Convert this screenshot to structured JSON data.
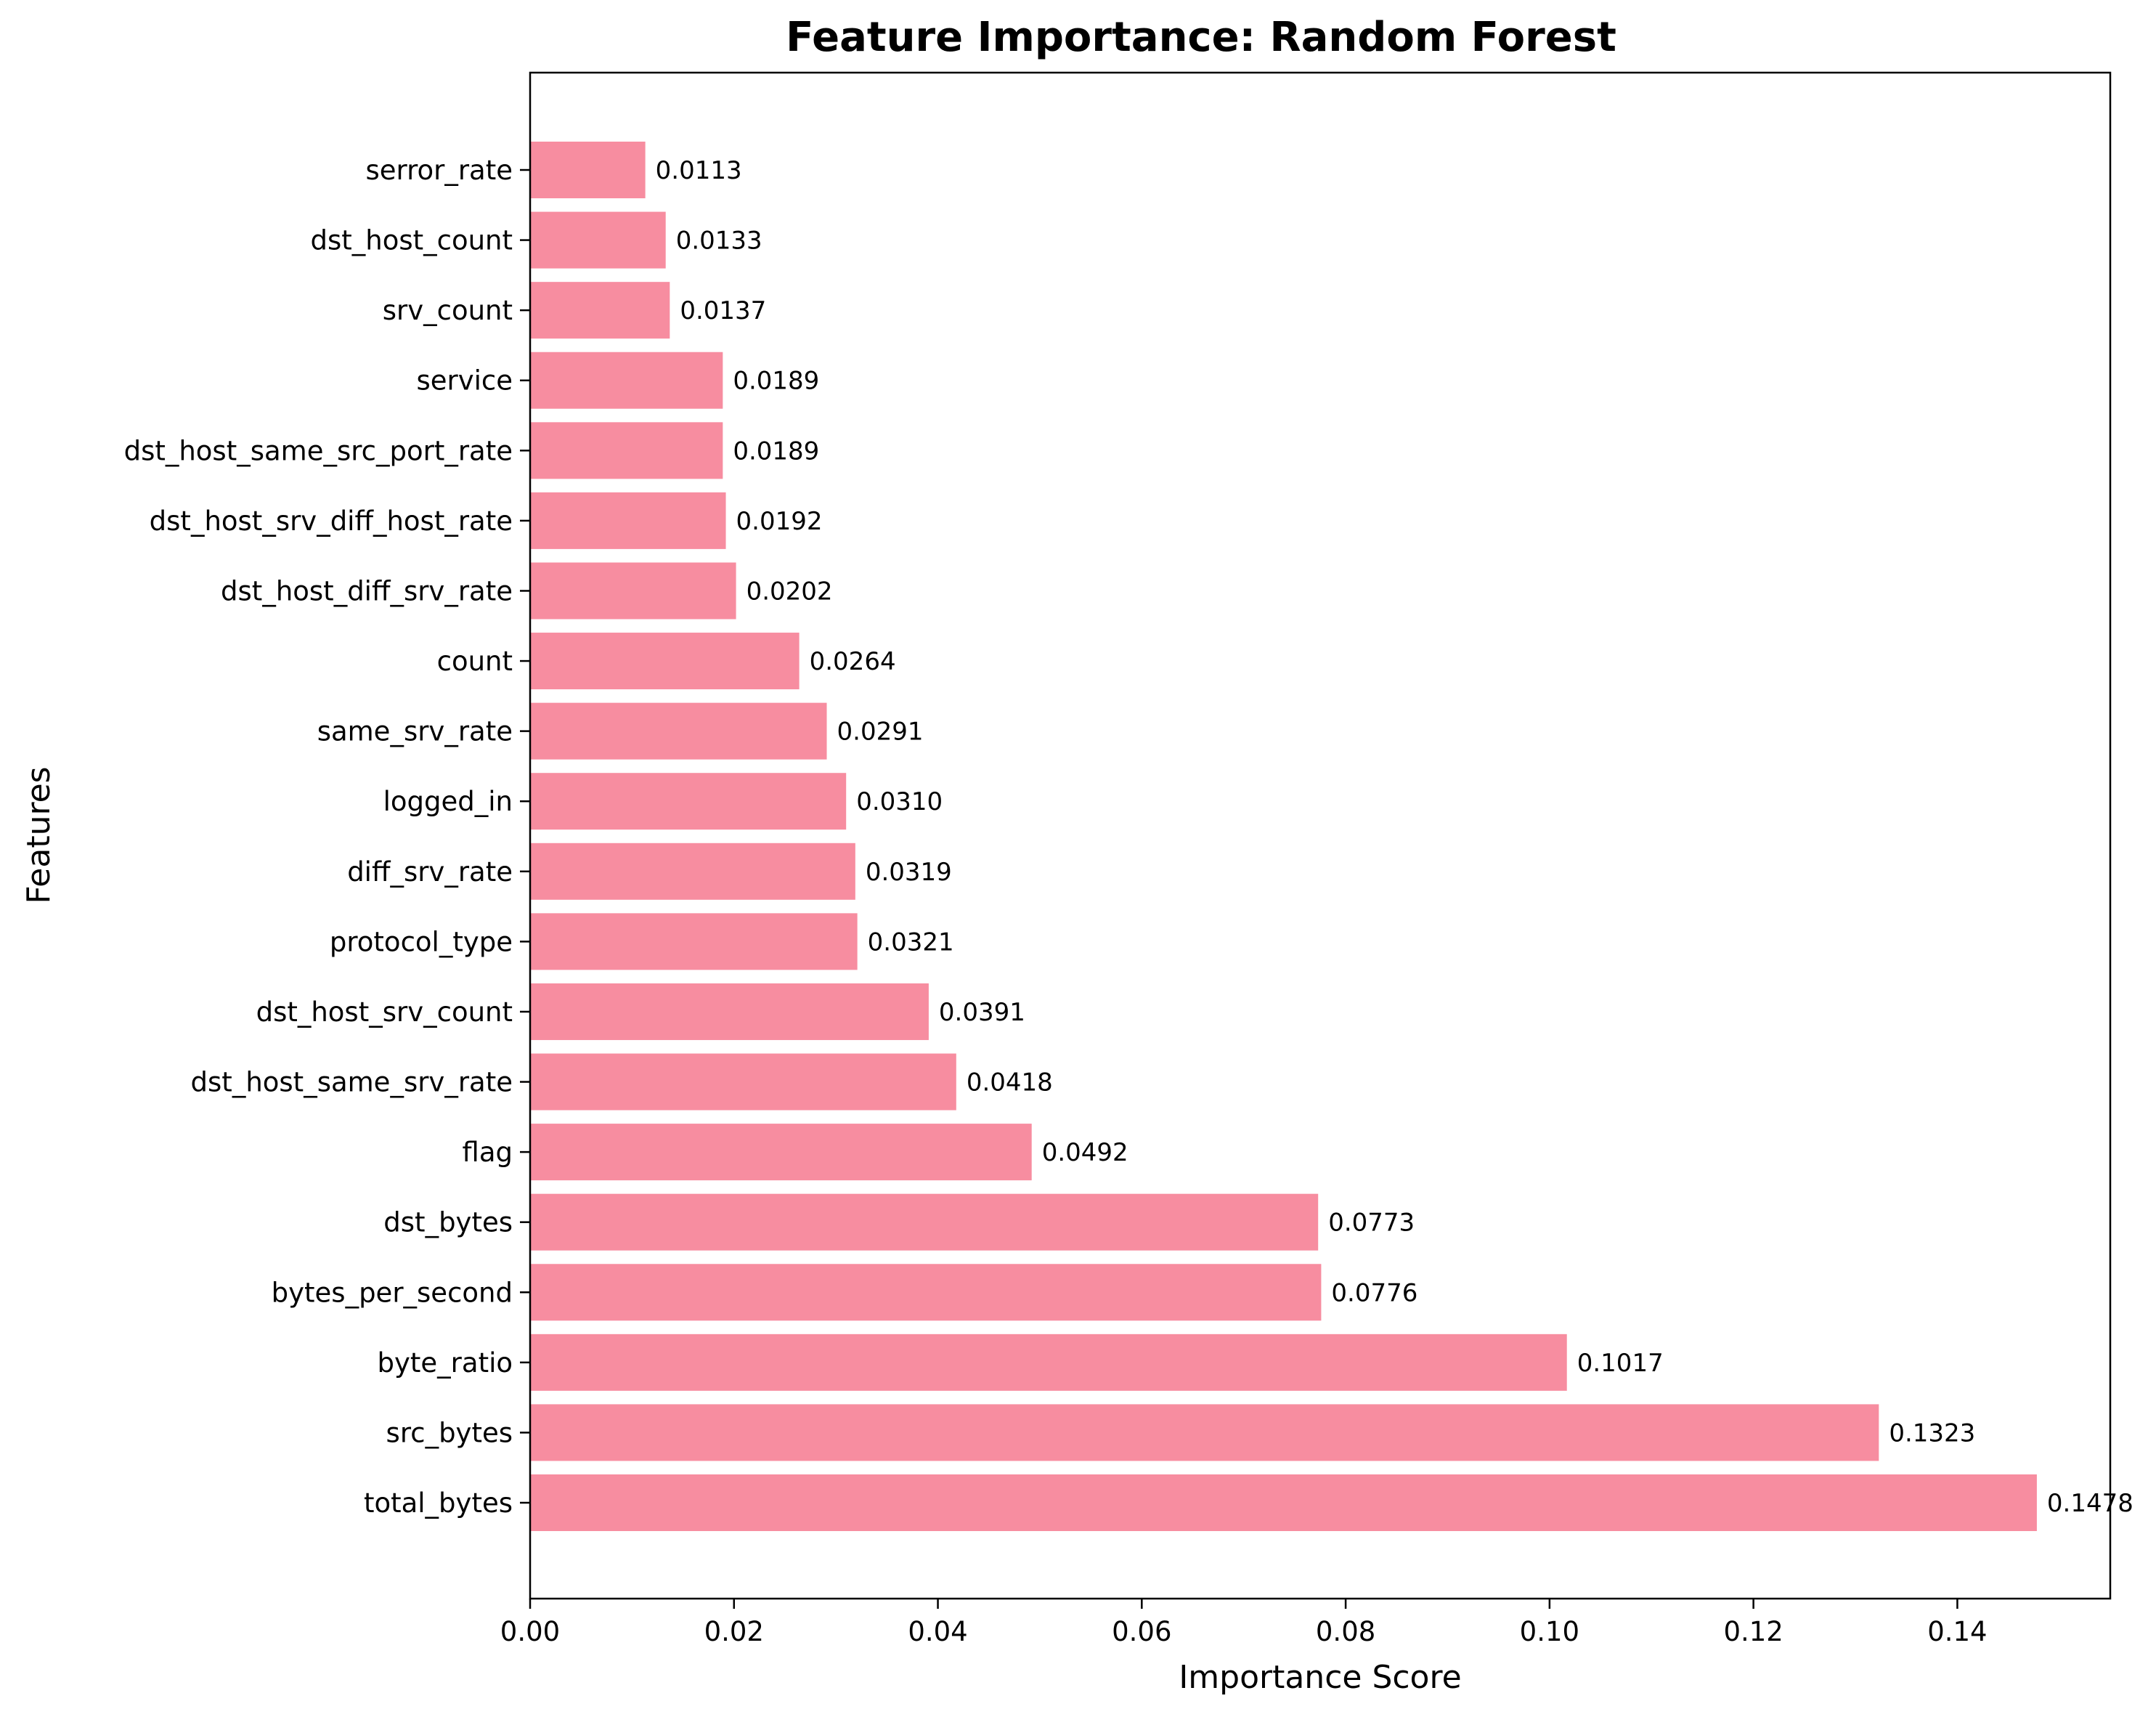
{
  "chart_data": {
    "type": "bar",
    "orientation": "horizontal",
    "title": "Feature Importance: Random Forest",
    "xlabel": "Importance Score",
    "ylabel": "Features",
    "xlim": [
      0,
      0.155
    ],
    "xticks": [
      "0.00",
      "0.02",
      "0.04",
      "0.06",
      "0.08",
      "0.10",
      "0.12",
      "0.14"
    ],
    "xtick_values": [
      0,
      0.02,
      0.04,
      0.06,
      0.08,
      0.1,
      0.12,
      0.14
    ],
    "bar_color": "#f78da0",
    "grid": false,
    "categories": [
      "total_bytes",
      "src_bytes",
      "byte_ratio",
      "bytes_per_second",
      "dst_bytes",
      "flag",
      "dst_host_same_srv_rate",
      "dst_host_srv_count",
      "protocol_type",
      "diff_srv_rate",
      "logged_in",
      "same_srv_rate",
      "count",
      "dst_host_diff_srv_rate",
      "dst_host_srv_diff_host_rate",
      "dst_host_same_src_port_rate",
      "service",
      "srv_count",
      "dst_host_count",
      "serror_rate"
    ],
    "values": [
      0.1478,
      0.1323,
      0.1017,
      0.0776,
      0.0773,
      0.0492,
      0.0418,
      0.0391,
      0.0321,
      0.0319,
      0.031,
      0.0291,
      0.0264,
      0.0202,
      0.0192,
      0.0189,
      0.0189,
      0.0137,
      0.0133,
      0.0113
    ],
    "value_labels": [
      "0.1478",
      "0.1323",
      "0.1017",
      "0.0776",
      "0.0773",
      "0.0492",
      "0.0418",
      "0.0391",
      "0.0321",
      "0.0319",
      "0.0310",
      "0.0291",
      "0.0264",
      "0.0202",
      "0.0192",
      "0.0189",
      "0.0189",
      "0.0137",
      "0.0133",
      "0.0113"
    ]
  }
}
